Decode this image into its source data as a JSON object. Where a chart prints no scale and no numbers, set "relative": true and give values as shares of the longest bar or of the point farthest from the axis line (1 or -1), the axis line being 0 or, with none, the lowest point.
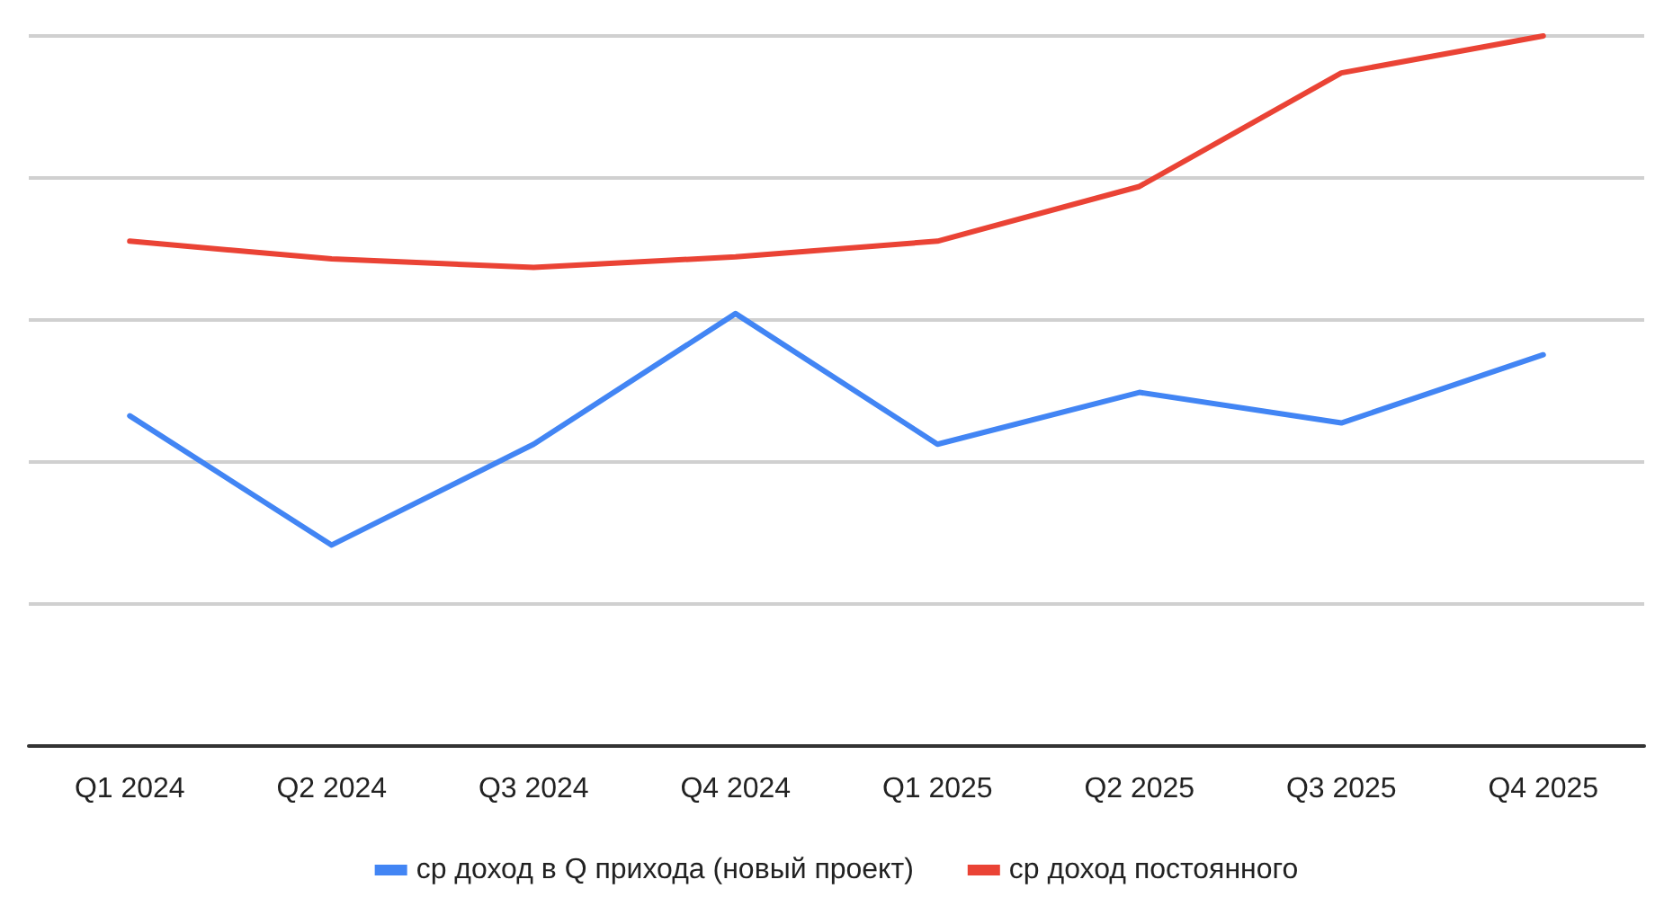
{
  "chart_data": {
    "type": "line",
    "relative": true,
    "categories": [
      "Q1 2024",
      "Q2 2024",
      "Q3 2024",
      "Q4 2024",
      "Q1 2025",
      "Q2 2025",
      "Q3 2025",
      "Q4 2025"
    ],
    "series": [
      {
        "name": "ср доход в Q прихода (новый проект)",
        "color": "#4285f4",
        "values": [
          0.465,
          0.283,
          0.425,
          0.609,
          0.425,
          0.498,
          0.455,
          0.551
        ]
      },
      {
        "name": "ср доход постоянного",
        "color": "#ea4335",
        "values": [
          0.711,
          0.686,
          0.674,
          0.689,
          0.711,
          0.788,
          0.948,
          1
        ]
      }
    ],
    "grid": "y",
    "legend": "bottom",
    "marker": "none",
    "line_style": "solid"
  }
}
